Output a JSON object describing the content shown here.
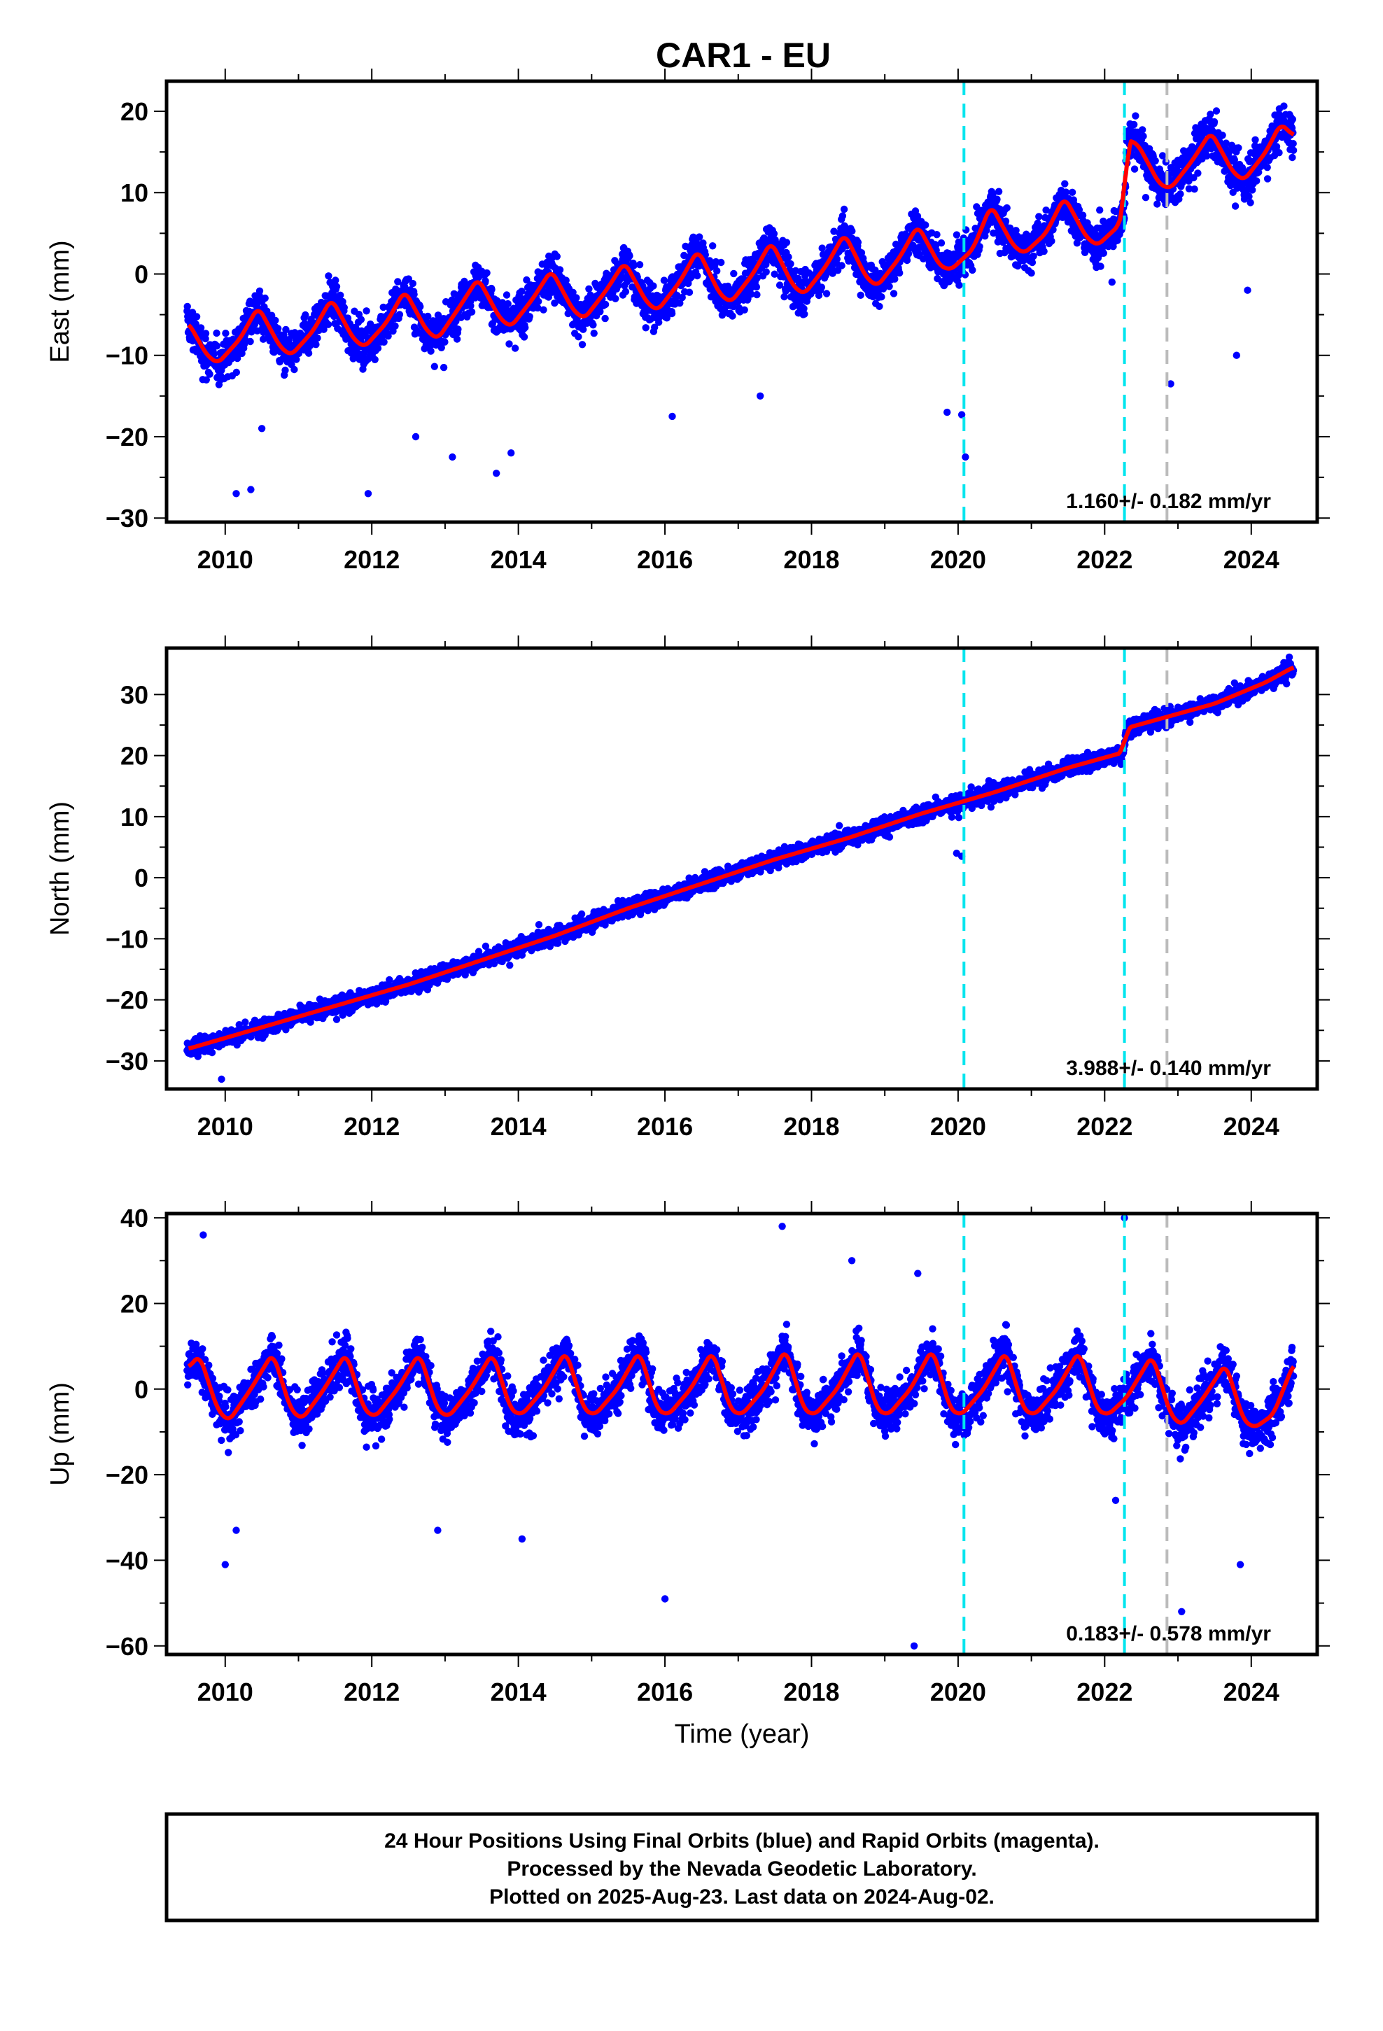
{
  "title": "CAR1 - EU",
  "footer": {
    "line1": "24 Hour Positions Using Final Orbits (blue) and Rapid Orbits (magenta).",
    "line2": "Processed by the Nevada Geodetic Laboratory.",
    "line3": "Plotted on 2025-Aug-23. Last data on 2024-Aug-02."
  },
  "colors": {
    "points": "#0000ff",
    "fit": "#ff0000",
    "equipment_change": "#00e5ee",
    "other_event": "#bbbbbb"
  },
  "chart_data": [
    {
      "type": "scatter",
      "name": "east",
      "ylabel": "East (mm)",
      "xlabel": "",
      "xlim": [
        2009.2,
        2024.9
      ],
      "ylim": [
        -30.5,
        23.7
      ],
      "xticks": [
        2010,
        2012,
        2014,
        2016,
        2018,
        2020,
        2022,
        2024
      ],
      "yticks": [
        -30,
        -20,
        -10,
        0,
        10,
        20
      ],
      "rate_label": "1.160+/- 0.182 mm/yr",
      "fit_samples": [
        [
          2009.5,
          -6
        ],
        [
          2009.75,
          -10
        ],
        [
          2009.9,
          -11
        ],
        [
          2010.2,
          -8
        ],
        [
          2010.45,
          -4
        ],
        [
          2010.75,
          -9
        ],
        [
          2010.9,
          -10
        ],
        [
          2011.2,
          -7
        ],
        [
          2011.45,
          -3
        ],
        [
          2011.75,
          -8
        ],
        [
          2011.9,
          -9
        ],
        [
          2012.2,
          -6
        ],
        [
          2012.45,
          -2
        ],
        [
          2012.75,
          -7
        ],
        [
          2012.9,
          -8
        ],
        [
          2013.2,
          -4
        ],
        [
          2013.45,
          -0.5
        ],
        [
          2013.75,
          -5.5
        ],
        [
          2013.9,
          -6.5
        ],
        [
          2014.2,
          -3
        ],
        [
          2014.45,
          0.5
        ],
        [
          2014.75,
          -4.5
        ],
        [
          2014.9,
          -5.5
        ],
        [
          2015.2,
          -2
        ],
        [
          2015.45,
          1.5
        ],
        [
          2015.75,
          -3.5
        ],
        [
          2015.9,
          -4.5
        ],
        [
          2016.2,
          -1
        ],
        [
          2016.45,
          3
        ],
        [
          2016.75,
          -2.5
        ],
        [
          2016.9,
          -3.5
        ],
        [
          2017.2,
          0
        ],
        [
          2017.45,
          4
        ],
        [
          2017.75,
          -1.5
        ],
        [
          2017.9,
          -2.5
        ],
        [
          2018.2,
          1
        ],
        [
          2018.45,
          5
        ],
        [
          2018.75,
          -0.5
        ],
        [
          2018.9,
          -1.5
        ],
        [
          2019.2,
          2
        ],
        [
          2019.45,
          6
        ],
        [
          2019.75,
          1
        ],
        [
          2019.9,
          0.5
        ],
        [
          2020.2,
          3
        ],
        [
          2020.45,
          8.5
        ],
        [
          2020.75,
          3.5
        ],
        [
          2020.9,
          2.5
        ],
        [
          2021.2,
          5
        ],
        [
          2021.45,
          9.5
        ],
        [
          2021.75,
          4.5
        ],
        [
          2021.9,
          3.5
        ],
        [
          2022.2,
          6
        ],
        [
          2022.27,
          8.5
        ],
        [
          2022.3,
          16.5
        ],
        [
          2022.45,
          16
        ],
        [
          2022.75,
          11
        ],
        [
          2022.9,
          10.5
        ],
        [
          2023.2,
          14
        ],
        [
          2023.45,
          17.5
        ],
        [
          2023.75,
          12.5
        ],
        [
          2023.9,
          11.5
        ],
        [
          2024.2,
          15
        ],
        [
          2024.4,
          18.5
        ],
        [
          2024.58,
          17
        ]
      ],
      "trend": [
        [
          2009.5,
          -8
        ],
        [
          2022.27,
          6.5
        ],
        [
          2022.3,
          14.5
        ],
        [
          2024.58,
          17
        ]
      ],
      "seasonal_amp": 4.5,
      "scatter_sd": 2.3,
      "outliers": [
        [
          2010.15,
          -27
        ],
        [
          2010.35,
          -26.5
        ],
        [
          2010.5,
          -19
        ],
        [
          2011.95,
          -27
        ],
        [
          2012.6,
          -20
        ],
        [
          2013.1,
          -22.5
        ],
        [
          2013.7,
          -24.5
        ],
        [
          2013.9,
          -22
        ],
        [
          2016.1,
          -17.5
        ],
        [
          2017.3,
          -15
        ],
        [
          2019.85,
          -17
        ],
        [
          2020.1,
          -22.5
        ],
        [
          2020.05,
          -17.3
        ],
        [
          2022.1,
          -1
        ],
        [
          2022.9,
          -13.5
        ],
        [
          2023.95,
          -2
        ],
        [
          2023.8,
          -10
        ]
      ],
      "equipment_changes": [
        2020.08,
        2022.27
      ],
      "other_events": [
        2022.85
      ]
    },
    {
      "type": "scatter",
      "name": "north",
      "ylabel": "North (mm)",
      "xlabel": "",
      "xlim": [
        2009.2,
        2024.9
      ],
      "ylim": [
        -34.6,
        37.6
      ],
      "xticks": [
        2010,
        2012,
        2014,
        2016,
        2018,
        2020,
        2022,
        2024
      ],
      "yticks": [
        -30,
        -20,
        -10,
        0,
        10,
        20,
        30
      ],
      "rate_label": "3.988+/- 0.140 mm/yr",
      "fit_samples": [
        [
          2009.5,
          -28
        ],
        [
          2010.5,
          -24.5
        ],
        [
          2011.5,
          -21
        ],
        [
          2012.5,
          -17.5
        ],
        [
          2013.5,
          -13.5
        ],
        [
          2014.5,
          -9.5
        ],
        [
          2015.5,
          -5
        ],
        [
          2016.5,
          -1
        ],
        [
          2017.5,
          3
        ],
        [
          2018.5,
          6.5
        ],
        [
          2019.5,
          10.5
        ],
        [
          2020.5,
          14
        ],
        [
          2021.5,
          18
        ],
        [
          2022.25,
          20.5
        ],
        [
          2022.3,
          24.5
        ],
        [
          2023.5,
          28.5
        ],
        [
          2024.2,
          32
        ],
        [
          2024.58,
          34.5
        ]
      ],
      "trend": [
        [
          2009.5,
          -28.5
        ],
        [
          2022.25,
          20.5
        ],
        [
          2022.3,
          24
        ],
        [
          2024.58,
          34
        ]
      ],
      "seasonal_amp": 1.2,
      "scatter_sd": 1.2,
      "outliers": [
        [
          2019.98,
          4
        ],
        [
          2020.05,
          3.5
        ],
        [
          2009.95,
          -33
        ],
        [
          2023.1,
          28
        ]
      ],
      "equipment_changes": [
        2020.08,
        2022.27
      ],
      "other_events": [
        2022.85
      ]
    },
    {
      "type": "scatter",
      "name": "up",
      "ylabel": "Up (mm)",
      "xlabel": "Time (year)",
      "xlim": [
        2009.2,
        2024.9
      ],
      "ylim": [
        -62,
        41
      ],
      "xticks": [
        2010,
        2012,
        2014,
        2016,
        2018,
        2020,
        2022,
        2024
      ],
      "yticks": [
        -60,
        -40,
        -20,
        0,
        20,
        40
      ],
      "rate_label": "0.183+/- 0.578 mm/yr",
      "fit_samples": [
        [
          2009.5,
          5
        ],
        [
          2009.65,
          8
        ],
        [
          2009.9,
          -5
        ],
        [
          2010.05,
          -7.5
        ],
        [
          2010.35,
          0
        ],
        [
          2010.65,
          8.5
        ],
        [
          2010.9,
          -5
        ],
        [
          2011.05,
          -7
        ],
        [
          2011.35,
          0
        ],
        [
          2011.65,
          8.5
        ],
        [
          2011.9,
          -5
        ],
        [
          2012.05,
          -6.5
        ],
        [
          2012.35,
          0
        ],
        [
          2012.65,
          8.5
        ],
        [
          2012.9,
          -5
        ],
        [
          2013.05,
          -6.5
        ],
        [
          2013.35,
          0
        ],
        [
          2013.65,
          8.5
        ],
        [
          2013.9,
          -5
        ],
        [
          2014.05,
          -6
        ],
        [
          2014.35,
          0
        ],
        [
          2014.65,
          9
        ],
        [
          2014.9,
          -5
        ],
        [
          2015.05,
          -6
        ],
        [
          2015.35,
          0
        ],
        [
          2015.65,
          9
        ],
        [
          2015.9,
          -5
        ],
        [
          2016.05,
          -6
        ],
        [
          2016.35,
          0
        ],
        [
          2016.65,
          9
        ],
        [
          2016.9,
          -5
        ],
        [
          2017.05,
          -6
        ],
        [
          2017.35,
          0
        ],
        [
          2017.65,
          9.5
        ],
        [
          2017.9,
          -5
        ],
        [
          2018.05,
          -6
        ],
        [
          2018.35,
          0
        ],
        [
          2018.65,
          9.5
        ],
        [
          2018.9,
          -5
        ],
        [
          2019.05,
          -6
        ],
        [
          2019.35,
          0
        ],
        [
          2019.65,
          9.5
        ],
        [
          2019.9,
          -5
        ],
        [
          2020.05,
          -6
        ],
        [
          2020.35,
          0
        ],
        [
          2020.65,
          9
        ],
        [
          2020.9,
          -5
        ],
        [
          2021.05,
          -6
        ],
        [
          2021.35,
          0
        ],
        [
          2021.65,
          9
        ],
        [
          2021.9,
          -5
        ],
        [
          2022.05,
          -6
        ],
        [
          2022.3,
          -2
        ],
        [
          2022.65,
          8
        ],
        [
          2022.9,
          -6
        ],
        [
          2023.05,
          -8.5
        ],
        [
          2023.35,
          -2
        ],
        [
          2023.65,
          6
        ],
        [
          2023.9,
          -7.5
        ],
        [
          2024.05,
          -9
        ],
        [
          2024.3,
          -6
        ],
        [
          2024.58,
          6
        ]
      ],
      "trend": [
        [
          2009.5,
          0
        ],
        [
          2024.58,
          -1
        ]
      ],
      "seasonal_amp": 8,
      "scatter_sd": 4.5,
      "outliers": [
        [
          2009.7,
          36
        ],
        [
          2010.0,
          -41
        ],
        [
          2010.15,
          -33
        ],
        [
          2016.0,
          -49
        ],
        [
          2017.6,
          38
        ],
        [
          2018.55,
          30
        ],
        [
          2019.4,
          -60
        ],
        [
          2022.27,
          40
        ],
        [
          2023.05,
          -52
        ],
        [
          2023.85,
          -41
        ],
        [
          2012.9,
          -33
        ],
        [
          2014.05,
          -35
        ],
        [
          2019.45,
          27
        ],
        [
          2022.15,
          -26
        ]
      ],
      "equipment_changes": [
        2020.08,
        2022.27
      ],
      "other_events": [
        2022.85
      ]
    }
  ]
}
